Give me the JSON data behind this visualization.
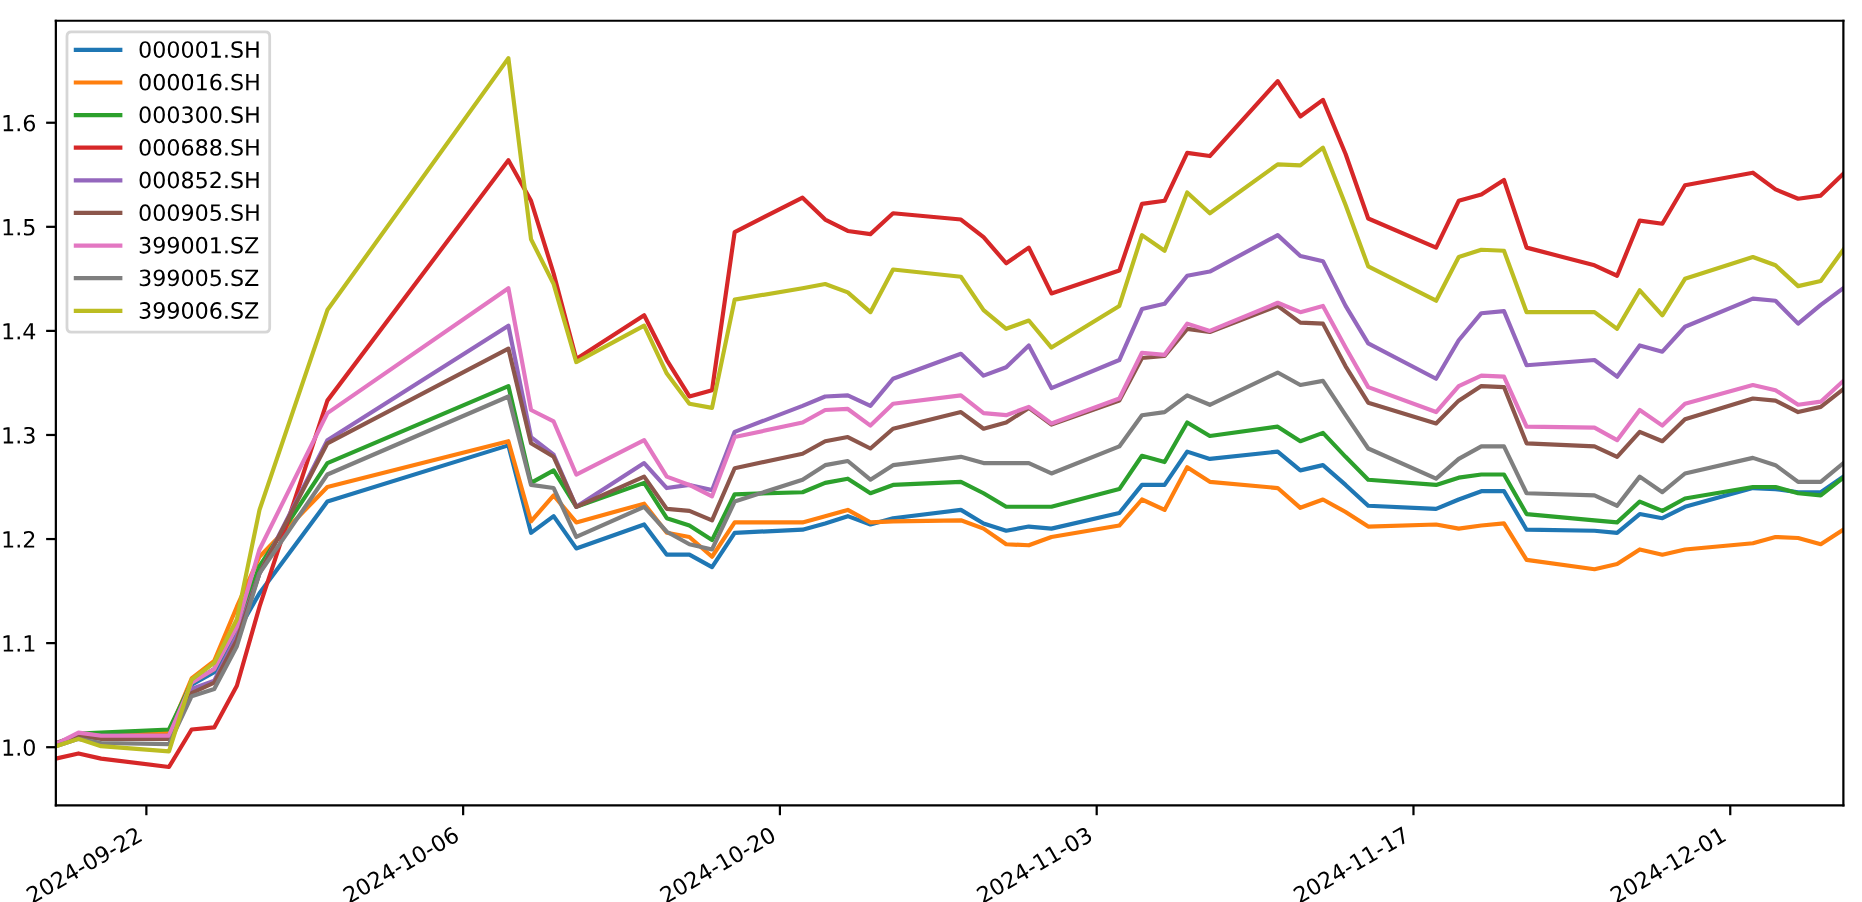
{
  "chart_data": {
    "type": "line",
    "x": [
      "2024-09-18",
      "2024-09-19",
      "2024-09-20",
      "2024-09-23",
      "2024-09-24",
      "2024-09-25",
      "2024-09-26",
      "2024-09-27",
      "2024-09-30",
      "2024-10-08",
      "2024-10-09",
      "2024-10-10",
      "2024-10-11",
      "2024-10-14",
      "2024-10-15",
      "2024-10-16",
      "2024-10-17",
      "2024-10-18",
      "2024-10-21",
      "2024-10-22",
      "2024-10-23",
      "2024-10-24",
      "2024-10-25",
      "2024-10-28",
      "2024-10-29",
      "2024-10-30",
      "2024-10-31",
      "2024-11-01",
      "2024-11-04",
      "2024-11-05",
      "2024-11-06",
      "2024-11-07",
      "2024-11-08",
      "2024-11-11",
      "2024-11-12",
      "2024-11-13",
      "2024-11-14",
      "2024-11-15",
      "2024-11-18",
      "2024-11-19",
      "2024-11-20",
      "2024-11-21",
      "2024-11-22",
      "2024-11-25",
      "2024-11-26",
      "2024-11-27",
      "2024-11-28",
      "2024-11-29",
      "2024-12-02",
      "2024-12-03",
      "2024-12-04",
      "2024-12-05",
      "2024-12-06"
    ],
    "series": [
      {
        "name": "000001.SH",
        "color": "#1f77b4",
        "values": [
          null,
          null,
          null,
          1.014,
          1.06,
          1.072,
          1.11,
          1.148,
          1.236,
          1.29,
          1.206,
          1.222,
          1.191,
          1.214,
          1.185,
          1.185,
          1.173,
          1.206,
          1.209,
          1.215,
          1.222,
          1.214,
          1.22,
          1.228,
          1.215,
          1.208,
          1.212,
          1.21,
          1.225,
          1.252,
          1.252,
          1.284,
          1.277,
          1.284,
          1.266,
          1.271,
          1.252,
          1.232,
          1.229,
          1.238,
          1.246,
          1.246,
          1.209,
          1.208,
          1.206,
          1.224,
          1.22,
          1.231,
          1.249,
          1.248,
          1.245,
          1.245,
          1.26
        ]
      },
      {
        "name": "000016.SH",
        "color": "#ff7f0e",
        "values": [
          null,
          null,
          1.013,
          1.014,
          1.066,
          1.083,
          1.135,
          1.183,
          1.25,
          1.294,
          1.217,
          1.242,
          1.216,
          1.234,
          1.206,
          1.202,
          1.183,
          1.216,
          1.216,
          1.222,
          1.228,
          1.216,
          1.217,
          1.218,
          1.21,
          1.195,
          1.194,
          1.202,
          1.213,
          1.238,
          1.228,
          1.269,
          1.255,
          1.249,
          1.23,
          1.238,
          1.226,
          1.212,
          1.214,
          1.21,
          1.213,
          1.215,
          1.18,
          1.171,
          1.176,
          1.19,
          1.185,
          1.19,
          1.196,
          1.202,
          1.201,
          1.195,
          1.209
        ]
      },
      {
        "name": "000300.SH",
        "color": "#2ca02c",
        "values": [
          1.003,
          1.013,
          1.014,
          1.017,
          1.062,
          1.075,
          1.116,
          1.174,
          1.273,
          1.347,
          1.254,
          1.266,
          1.231,
          1.254,
          1.22,
          1.213,
          1.199,
          1.243,
          1.245,
          1.254,
          1.258,
          1.244,
          1.252,
          1.255,
          1.244,
          1.231,
          1.231,
          1.231,
          1.248,
          1.28,
          1.274,
          1.312,
          1.299,
          1.308,
          1.294,
          1.302,
          1.279,
          1.257,
          1.252,
          1.259,
          1.262,
          1.262,
          1.224,
          1.218,
          1.216,
          1.236,
          1.227,
          1.239,
          1.25,
          1.25,
          1.244,
          1.242,
          1.259
        ]
      },
      {
        "name": "000688.SH",
        "color": "#d62728",
        "values": [
          0.989,
          0.994,
          0.989,
          0.981,
          1.017,
          1.019,
          1.059,
          1.135,
          1.333,
          1.564,
          1.525,
          1.455,
          1.373,
          1.415,
          1.372,
          1.337,
          1.343,
          1.495,
          1.528,
          1.507,
          1.496,
          1.493,
          1.513,
          1.507,
          1.49,
          1.465,
          1.48,
          1.436,
          1.458,
          1.522,
          1.525,
          1.571,
          1.568,
          1.64,
          1.606,
          1.622,
          1.57,
          1.508,
          1.48,
          1.525,
          1.531,
          1.545,
          1.48,
          1.463,
          1.453,
          1.506,
          1.503,
          1.54,
          1.552,
          1.536,
          1.527,
          1.53,
          1.551
        ]
      },
      {
        "name": "000852.SH",
        "color": "#9467bd",
        "values": [
          1.001,
          1.013,
          1.011,
          1.011,
          1.056,
          1.064,
          1.107,
          1.167,
          1.295,
          1.405,
          1.298,
          1.281,
          1.231,
          1.273,
          1.249,
          1.252,
          1.247,
          1.303,
          1.328,
          1.337,
          1.338,
          1.328,
          1.354,
          1.378,
          1.357,
          1.365,
          1.386,
          1.345,
          1.372,
          1.421,
          1.426,
          1.453,
          1.457,
          1.492,
          1.472,
          1.467,
          1.424,
          1.388,
          1.354,
          1.391,
          1.417,
          1.419,
          1.367,
          1.372,
          1.356,
          1.386,
          1.38,
          1.404,
          1.431,
          1.429,
          1.407,
          1.425,
          1.441
        ]
      },
      {
        "name": "000905.SH",
        "color": "#8c564b",
        "values": [
          1.004,
          1.011,
          1.008,
          1.008,
          1.052,
          1.062,
          1.103,
          1.167,
          1.292,
          1.383,
          1.292,
          1.279,
          1.231,
          1.26,
          1.229,
          1.227,
          1.218,
          1.268,
          1.282,
          1.294,
          1.298,
          1.287,
          1.306,
          1.322,
          1.306,
          1.312,
          1.326,
          1.31,
          1.333,
          1.374,
          1.376,
          1.402,
          1.399,
          1.424,
          1.408,
          1.407,
          1.366,
          1.331,
          1.311,
          1.333,
          1.347,
          1.346,
          1.292,
          1.289,
          1.279,
          1.303,
          1.294,
          1.315,
          1.335,
          1.333,
          1.322,
          1.327,
          1.344
        ]
      },
      {
        "name": "399001.SZ",
        "color": "#e377c2",
        "values": [
          1.003,
          1.014,
          1.011,
          1.011,
          1.062,
          1.075,
          1.116,
          1.19,
          1.321,
          1.441,
          1.324,
          1.313,
          1.262,
          1.295,
          1.26,
          1.252,
          1.241,
          1.298,
          1.312,
          1.324,
          1.325,
          1.309,
          1.33,
          1.338,
          1.321,
          1.319,
          1.327,
          1.311,
          1.335,
          1.379,
          1.377,
          1.407,
          1.4,
          1.427,
          1.418,
          1.424,
          1.384,
          1.346,
          1.322,
          1.347,
          1.357,
          1.356,
          1.308,
          1.307,
          1.295,
          1.324,
          1.309,
          1.33,
          1.348,
          1.343,
          1.329,
          1.332,
          1.352
        ]
      },
      {
        "name": "399005.SZ",
        "color": "#7f7f7f",
        "values": [
          1.001,
          1.008,
          1.004,
          1.003,
          1.049,
          1.056,
          1.097,
          1.167,
          1.262,
          1.337,
          1.252,
          1.249,
          1.202,
          1.231,
          1.207,
          1.195,
          1.19,
          1.236,
          1.257,
          1.271,
          1.275,
          1.257,
          1.271,
          1.279,
          1.273,
          1.273,
          1.273,
          1.263,
          1.289,
          1.319,
          1.322,
          1.338,
          1.329,
          1.36,
          1.348,
          1.352,
          1.319,
          1.287,
          1.258,
          1.277,
          1.289,
          1.289,
          1.244,
          1.242,
          1.232,
          1.26,
          1.245,
          1.263,
          1.278,
          1.271,
          1.255,
          1.255,
          1.273
        ]
      },
      {
        "name": "399006.SZ",
        "color": "#bcbd22",
        "values": [
          1.001,
          1.008,
          1.001,
          0.996,
          1.065,
          1.081,
          1.123,
          1.228,
          1.42,
          1.662,
          1.488,
          1.445,
          1.37,
          1.405,
          1.359,
          1.33,
          1.326,
          1.43,
          1.441,
          1.445,
          1.437,
          1.418,
          1.459,
          1.452,
          1.42,
          1.402,
          1.41,
          1.384,
          1.424,
          1.492,
          1.477,
          1.533,
          1.513,
          1.56,
          1.559,
          1.576,
          1.521,
          1.462,
          1.429,
          1.471,
          1.478,
          1.477,
          1.418,
          1.418,
          1.402,
          1.439,
          1.415,
          1.45,
          1.471,
          1.463,
          1.443,
          1.448,
          1.478
        ]
      }
    ],
    "xlim": [
      "2024-09-18",
      "2024-12-06"
    ],
    "xticks": [
      "2024-09-22",
      "2024-10-06",
      "2024-10-20",
      "2024-11-03",
      "2024-11-17",
      "2024-12-01"
    ],
    "ylim": [
      0.944,
      1.698
    ],
    "yticks": [
      {
        "value": 1.0,
        "label": "1.0"
      },
      1.1,
      1.2,
      1.3,
      1.4,
      1.5,
      1.6
    ],
    "grid": false,
    "legend": "top left"
  }
}
